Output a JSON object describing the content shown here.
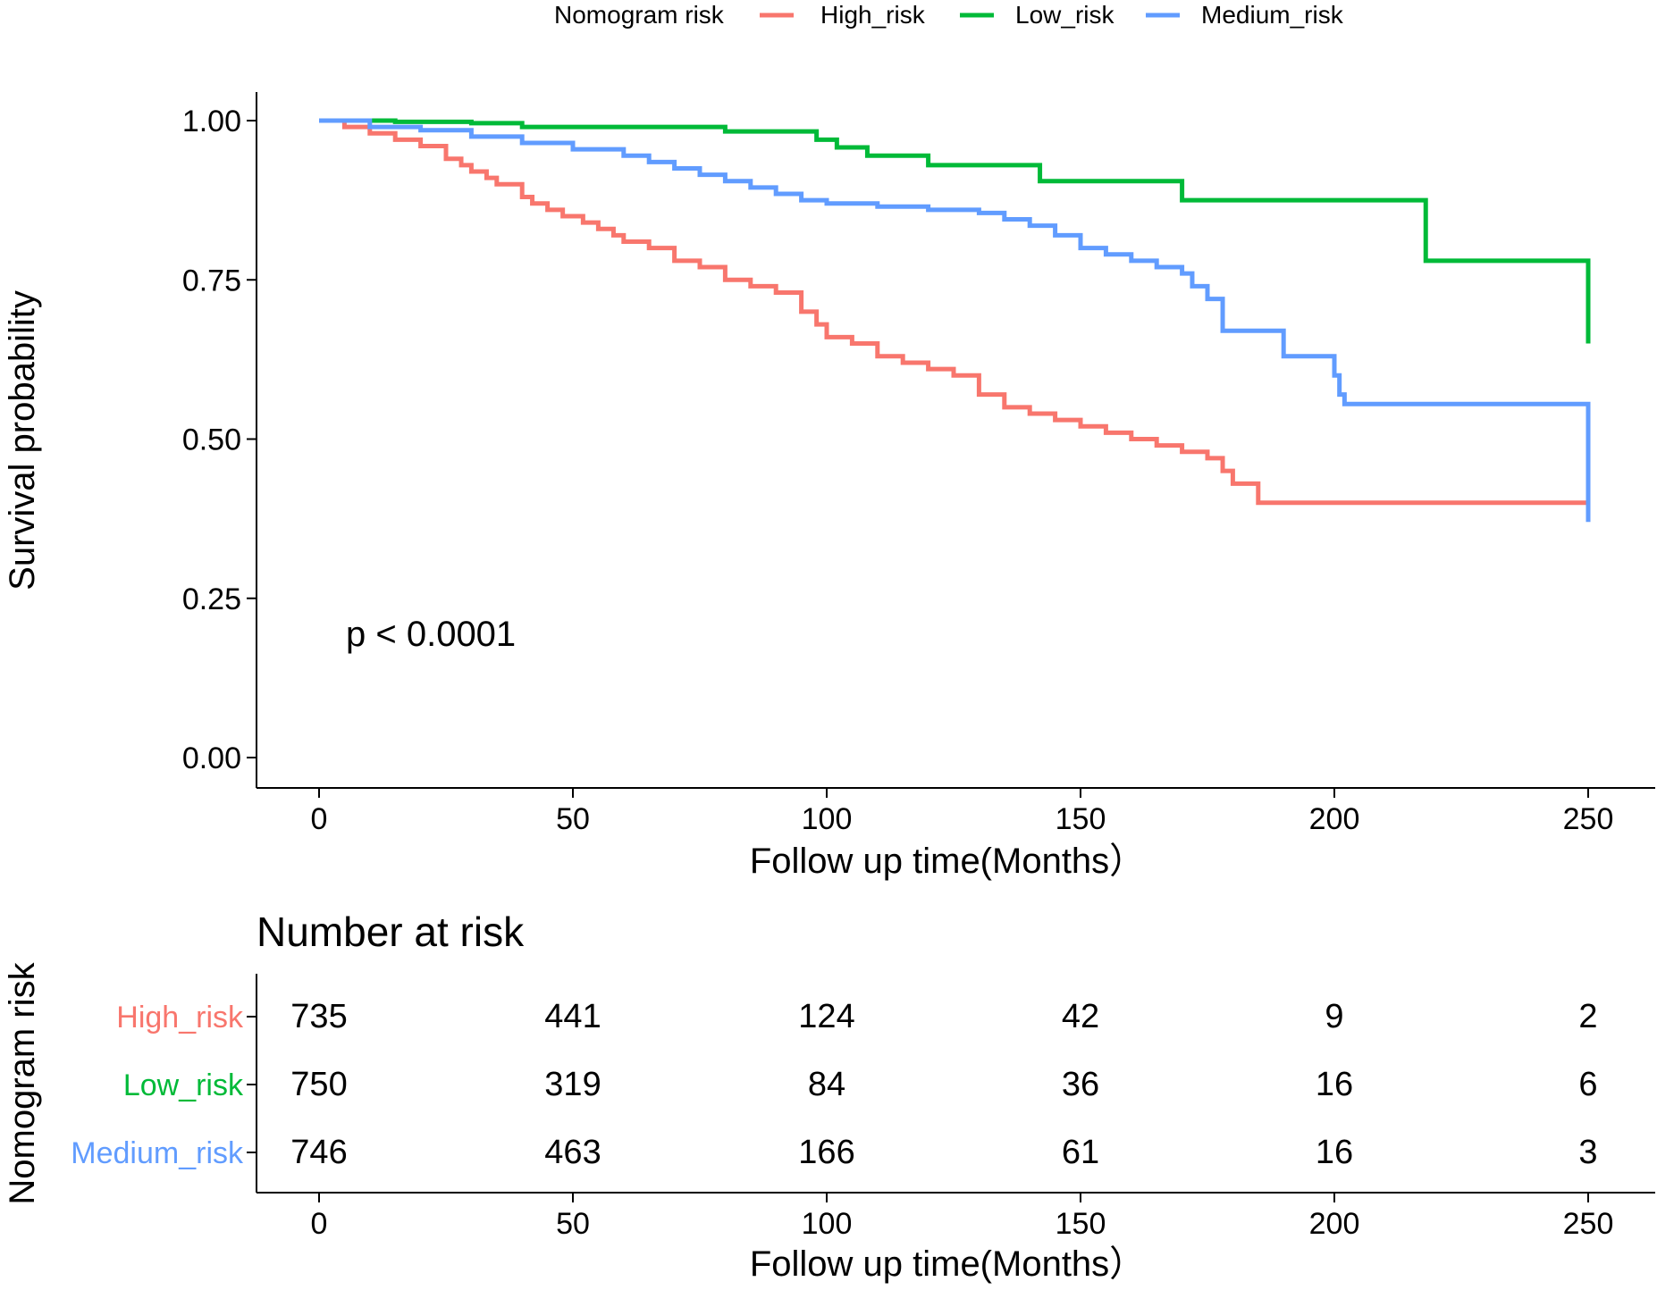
{
  "chart_data": [
    {
      "type": "line",
      "title": "",
      "xlabel": "Follow up time(Months）",
      "ylabel": "Survival probability",
      "xlim": [
        -25,
        263
      ],
      "ylim": [
        -0.05,
        1.05
      ],
      "xticks": [
        0,
        50,
        100,
        150,
        200,
        250
      ],
      "yticks": [
        0.0,
        0.25,
        0.5,
        0.75,
        1.0
      ],
      "ytick_labels": [
        "0.00",
        "0.25",
        "0.50",
        "0.75",
        "1.00"
      ],
      "grid": false,
      "legend": {
        "title": "Nomogram risk",
        "position": "top",
        "entries": [
          "High_risk",
          "Low_risk",
          "Medium_risk"
        ]
      },
      "annotation": "p < 0.0001",
      "series": [
        {
          "name": "High_risk",
          "color": "#F8766D",
          "step": true,
          "x": [
            0,
            5,
            10,
            15,
            20,
            25,
            28,
            30,
            33,
            35,
            40,
            42,
            45,
            48,
            52,
            55,
            58,
            60,
            65,
            70,
            75,
            80,
            85,
            90,
            95,
            98,
            100,
            105,
            110,
            115,
            120,
            125,
            130,
            135,
            140,
            145,
            150,
            155,
            160,
            165,
            170,
            175,
            178,
            180,
            185,
            190,
            195,
            200,
            250
          ],
          "y": [
            1.0,
            0.99,
            0.98,
            0.97,
            0.96,
            0.94,
            0.93,
            0.92,
            0.91,
            0.9,
            0.88,
            0.87,
            0.86,
            0.85,
            0.84,
            0.83,
            0.82,
            0.81,
            0.8,
            0.78,
            0.77,
            0.75,
            0.74,
            0.73,
            0.7,
            0.68,
            0.66,
            0.65,
            0.63,
            0.62,
            0.61,
            0.6,
            0.57,
            0.55,
            0.54,
            0.53,
            0.52,
            0.51,
            0.5,
            0.49,
            0.48,
            0.47,
            0.45,
            0.43,
            0.4,
            0.4,
            0.4,
            0.4,
            0.4
          ]
        },
        {
          "name": "Low_risk",
          "color": "#00BA38",
          "step": true,
          "x": [
            0,
            15,
            30,
            40,
            80,
            98,
            102,
            108,
            120,
            142,
            170,
            218,
            250,
            250
          ],
          "y": [
            1.0,
            0.998,
            0.996,
            0.99,
            0.983,
            0.97,
            0.958,
            0.945,
            0.93,
            0.905,
            0.875,
            0.78,
            0.78,
            0.65
          ]
        },
        {
          "name": "Medium_risk",
          "color": "#619CFF",
          "step": true,
          "x": [
            0,
            10,
            20,
            30,
            40,
            50,
            60,
            65,
            70,
            75,
            80,
            85,
            90,
            95,
            100,
            110,
            120,
            130,
            135,
            140,
            145,
            150,
            155,
            160,
            165,
            170,
            172,
            175,
            178,
            190,
            200,
            201,
            202,
            250,
            250
          ],
          "y": [
            1.0,
            0.99,
            0.985,
            0.975,
            0.965,
            0.955,
            0.945,
            0.935,
            0.925,
            0.915,
            0.905,
            0.895,
            0.885,
            0.875,
            0.87,
            0.865,
            0.86,
            0.855,
            0.845,
            0.835,
            0.82,
            0.8,
            0.79,
            0.78,
            0.77,
            0.76,
            0.74,
            0.72,
            0.67,
            0.63,
            0.6,
            0.57,
            0.555,
            0.555,
            0.37
          ]
        }
      ]
    },
    {
      "type": "table",
      "title": "Number at risk",
      "xlabel": "Follow up time(Months）",
      "ylabel": "Nomogram risk",
      "xticks": [
        0,
        50,
        100,
        150,
        200,
        250
      ],
      "rows": [
        {
          "name": "High_risk",
          "color": "#F8766D",
          "values": [
            735,
            441,
            124,
            42,
            9,
            2
          ]
        },
        {
          "name": "Low_risk",
          "color": "#00BA38",
          "values": [
            750,
            319,
            84,
            36,
            16,
            6
          ]
        },
        {
          "name": "Medium_risk",
          "color": "#619CFF",
          "values": [
            746,
            463,
            166,
            61,
            16,
            3
          ]
        }
      ]
    }
  ]
}
